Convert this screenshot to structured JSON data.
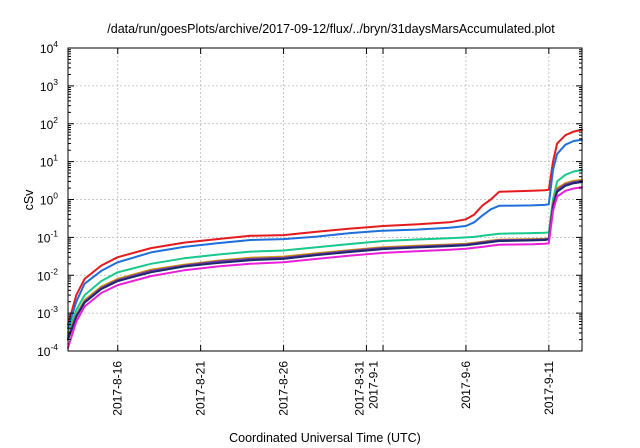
{
  "chart_data": {
    "type": "line",
    "title": "/data/run/goesPlots/archive/2017-09-12/flux/../bryn/31daysMarsAccumulated.plot",
    "xlabel": "Coordinated Universal Time (UTC)",
    "ylabel": "cSv",
    "yscale": "log",
    "ylim": [
      0.0001,
      10000
    ],
    "xlim": [
      "2017-08-13",
      "2017-09-13"
    ],
    "grid": true,
    "y_ticks": [
      {
        "base": "10",
        "exp": "-4",
        "value": 0.0001
      },
      {
        "base": "10",
        "exp": "-3",
        "value": 0.001
      },
      {
        "base": "10",
        "exp": "-2",
        "value": 0.01
      },
      {
        "base": "10",
        "exp": "-1",
        "value": 0.1
      },
      {
        "base": "10",
        "exp": "0",
        "value": 1
      },
      {
        "base": "10",
        "exp": "1",
        "value": 10
      },
      {
        "base": "10",
        "exp": "2",
        "value": 100
      },
      {
        "base": "10",
        "exp": "3",
        "value": 1000
      },
      {
        "base": "10",
        "exp": "4",
        "value": 10000
      }
    ],
    "x_ticks": [
      {
        "date": "2017-08-16",
        "lines": [
          "2017-8-16"
        ]
      },
      {
        "date": "2017-08-21",
        "lines": [
          "2017-8-21"
        ]
      },
      {
        "date": "2017-08-26",
        "lines": [
          "2017-8-26"
        ]
      },
      {
        "date": "2017-08-31",
        "lines": [
          "2017-8-31",
          "2017-9-1"
        ]
      },
      {
        "date": "2017-09-06",
        "lines": [
          "2017-9-6"
        ]
      },
      {
        "date": "2017-09-11",
        "lines": [
          "2017-9-11"
        ]
      }
    ],
    "x_minor_grid": [
      "2017-09-01"
    ],
    "series": [
      {
        "color": "#e41a1c",
        "x": [
          "2017-08-13",
          "2017-08-13T12:00",
          "2017-08-14",
          "2017-08-15",
          "2017-08-16",
          "2017-08-18",
          "2017-08-20",
          "2017-08-22",
          "2017-08-24",
          "2017-08-26",
          "2017-08-28",
          "2017-08-30",
          "2017-09-01",
          "2017-09-03",
          "2017-09-05",
          "2017-09-06",
          "2017-09-06T12:00",
          "2017-09-07",
          "2017-09-07T12:00",
          "2017-09-08",
          "2017-09-10",
          "2017-09-10T18:00",
          "2017-09-11",
          "2017-09-11T06:00",
          "2017-09-11T12:00",
          "2017-09-12",
          "2017-09-12T12:00",
          "2017-09-13"
        ],
        "y": [
          0.0005,
          0.003,
          0.008,
          0.018,
          0.03,
          0.052,
          0.073,
          0.09,
          0.11,
          0.115,
          0.14,
          0.17,
          0.2,
          0.22,
          0.25,
          0.3,
          0.4,
          0.7,
          1.0,
          1.6,
          1.7,
          1.75,
          1.8,
          10,
          30,
          50,
          62,
          70
        ]
      },
      {
        "color": "#1f6fdb",
        "x": [
          "2017-08-13",
          "2017-08-13T12:00",
          "2017-08-14",
          "2017-08-15",
          "2017-08-16",
          "2017-08-18",
          "2017-08-20",
          "2017-08-22",
          "2017-08-24",
          "2017-08-26",
          "2017-08-28",
          "2017-08-30",
          "2017-09-01",
          "2017-09-03",
          "2017-09-05",
          "2017-09-06",
          "2017-09-06T12:00",
          "2017-09-07",
          "2017-09-07T12:00",
          "2017-09-08",
          "2017-09-10",
          "2017-09-10T18:00",
          "2017-09-11",
          "2017-09-11T06:00",
          "2017-09-11T12:00",
          "2017-09-12",
          "2017-09-12T12:00",
          "2017-09-13"
        ],
        "y": [
          0.0004,
          0.002,
          0.006,
          0.013,
          0.022,
          0.04,
          0.056,
          0.07,
          0.085,
          0.09,
          0.105,
          0.13,
          0.15,
          0.16,
          0.18,
          0.2,
          0.25,
          0.38,
          0.55,
          0.68,
          0.7,
          0.72,
          0.75,
          6,
          16,
          28,
          35,
          38
        ]
      },
      {
        "color": "#17c98a",
        "x": [
          "2017-08-13",
          "2017-08-13T12:00",
          "2017-08-14",
          "2017-08-15",
          "2017-08-16",
          "2017-08-18",
          "2017-08-20",
          "2017-08-22",
          "2017-08-24",
          "2017-08-26",
          "2017-08-28",
          "2017-08-30",
          "2017-09-01",
          "2017-09-03",
          "2017-09-05",
          "2017-09-06",
          "2017-09-06T12:00",
          "2017-09-07",
          "2017-09-07T12:00",
          "2017-09-08",
          "2017-09-10",
          "2017-09-10T18:00",
          "2017-09-11",
          "2017-09-11T06:00",
          "2017-09-11T12:00",
          "2017-09-12",
          "2017-09-12T12:00",
          "2017-09-13"
        ],
        "y": [
          0.0003,
          0.0012,
          0.003,
          0.007,
          0.012,
          0.02,
          0.028,
          0.035,
          0.042,
          0.045,
          0.055,
          0.067,
          0.08,
          0.088,
          0.095,
          0.1,
          0.103,
          0.11,
          0.118,
          0.125,
          0.13,
          0.132,
          0.135,
          1.0,
          3.0,
          4.5,
          5.5,
          6.0
        ]
      },
      {
        "color": "#cc9900",
        "x": [
          "2017-08-13",
          "2017-08-13T12:00",
          "2017-08-14",
          "2017-08-15",
          "2017-08-16",
          "2017-08-18",
          "2017-08-20",
          "2017-08-22",
          "2017-08-24",
          "2017-08-26",
          "2017-08-28",
          "2017-08-30",
          "2017-09-01",
          "2017-09-03",
          "2017-09-05",
          "2017-09-06",
          "2017-09-06T12:00",
          "2017-09-07",
          "2017-09-07T12:00",
          "2017-09-08",
          "2017-09-10",
          "2017-09-10T18:00",
          "2017-09-11",
          "2017-09-11T06:00",
          "2017-09-11T12:00",
          "2017-09-12",
          "2017-09-12T12:00",
          "2017-09-13"
        ],
        "y": [
          0.00025,
          0.0009,
          0.0022,
          0.005,
          0.008,
          0.014,
          0.019,
          0.024,
          0.029,
          0.031,
          0.038,
          0.046,
          0.055,
          0.06,
          0.065,
          0.068,
          0.072,
          0.077,
          0.082,
          0.087,
          0.09,
          0.092,
          0.095,
          0.8,
          2.0,
          2.7,
          3.1,
          3.3
        ]
      },
      {
        "color": "#7a3aa8",
        "x": [
          "2017-08-13",
          "2017-08-13T12:00",
          "2017-08-14",
          "2017-08-15",
          "2017-08-16",
          "2017-08-18",
          "2017-08-20",
          "2017-08-22",
          "2017-08-24",
          "2017-08-26",
          "2017-08-28",
          "2017-08-30",
          "2017-09-01",
          "2017-09-03",
          "2017-09-05",
          "2017-09-06",
          "2017-09-06T12:00",
          "2017-09-07",
          "2017-09-07T12:00",
          "2017-09-08",
          "2017-09-10",
          "2017-09-10T18:00",
          "2017-09-11",
          "2017-09-11T06:00",
          "2017-09-11T12:00",
          "2017-09-12",
          "2017-09-12T12:00",
          "2017-09-13"
        ],
        "y": [
          0.00022,
          0.00085,
          0.002,
          0.0046,
          0.0075,
          0.013,
          0.018,
          0.023,
          0.027,
          0.029,
          0.036,
          0.044,
          0.052,
          0.057,
          0.062,
          0.065,
          0.069,
          0.074,
          0.079,
          0.084,
          0.087,
          0.089,
          0.092,
          0.72,
          1.8,
          2.5,
          2.9,
          3.1
        ]
      },
      {
        "color": "#1a2a6c",
        "x": [
          "2017-08-13",
          "2017-08-13T12:00",
          "2017-08-14",
          "2017-08-15",
          "2017-08-16",
          "2017-08-18",
          "2017-08-20",
          "2017-08-22",
          "2017-08-24",
          "2017-08-26",
          "2017-08-28",
          "2017-08-30",
          "2017-09-01",
          "2017-09-03",
          "2017-09-05",
          "2017-09-06",
          "2017-09-06T12:00",
          "2017-09-07",
          "2017-09-07T12:00",
          "2017-09-08",
          "2017-09-10",
          "2017-09-10T18:00",
          "2017-09-11",
          "2017-09-11T06:00",
          "2017-09-11T12:00",
          "2017-09-12",
          "2017-09-12T12:00",
          "2017-09-13"
        ],
        "y": [
          0.0002,
          0.0008,
          0.0019,
          0.0043,
          0.007,
          0.012,
          0.017,
          0.021,
          0.025,
          0.027,
          0.034,
          0.041,
          0.049,
          0.054,
          0.059,
          0.062,
          0.066,
          0.07,
          0.075,
          0.08,
          0.083,
          0.085,
          0.088,
          0.65,
          1.6,
          2.3,
          2.7,
          2.9
        ]
      },
      {
        "color": "#e820d8",
        "x": [
          "2017-08-13",
          "2017-08-13T12:00",
          "2017-08-14",
          "2017-08-15",
          "2017-08-16",
          "2017-08-18",
          "2017-08-20",
          "2017-08-22",
          "2017-08-24",
          "2017-08-26",
          "2017-08-28",
          "2017-08-30",
          "2017-09-01",
          "2017-09-03",
          "2017-09-05",
          "2017-09-06",
          "2017-09-06T12:00",
          "2017-09-07",
          "2017-09-07T12:00",
          "2017-09-08",
          "2017-09-10",
          "2017-09-10T18:00",
          "2017-09-11",
          "2017-09-11T06:00",
          "2017-09-11T12:00",
          "2017-09-12",
          "2017-09-12T12:00",
          "2017-09-13"
        ],
        "y": [
          0.00012,
          0.0006,
          0.0015,
          0.0034,
          0.0055,
          0.0095,
          0.0135,
          0.017,
          0.02,
          0.022,
          0.027,
          0.033,
          0.039,
          0.043,
          0.047,
          0.05,
          0.053,
          0.056,
          0.06,
          0.064,
          0.066,
          0.068,
          0.07,
          0.5,
          1.2,
          1.7,
          1.95,
          2.1
        ]
      }
    ]
  }
}
